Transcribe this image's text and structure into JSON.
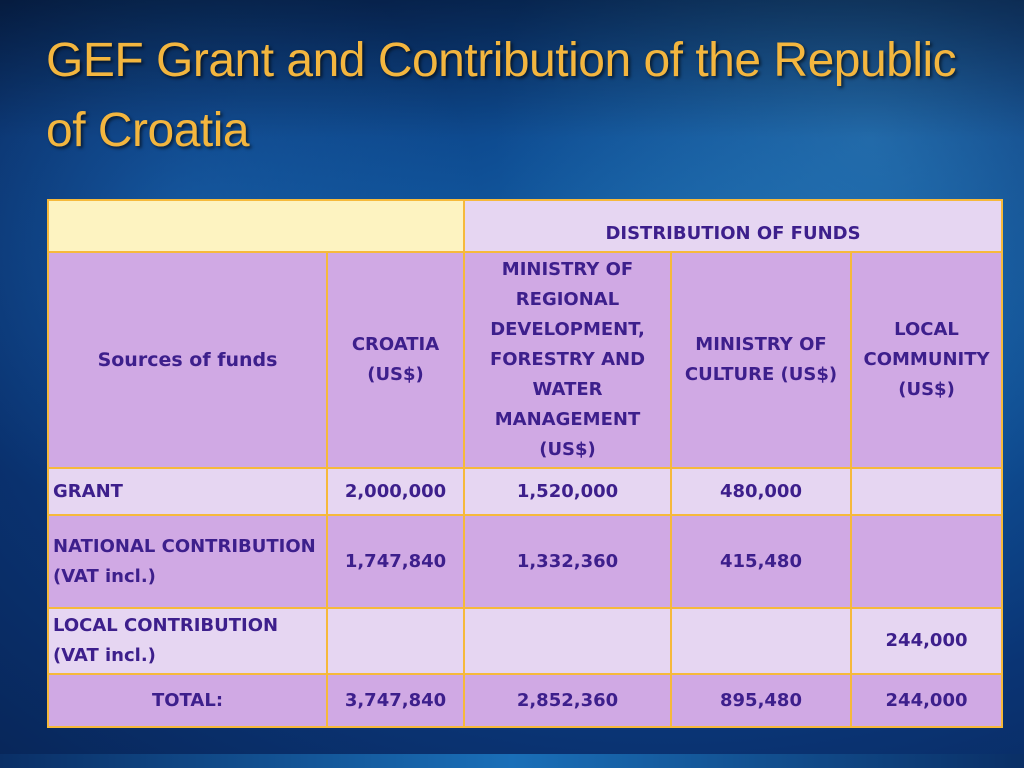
{
  "title": "GEF Grant and Contribution of the Republic of Croatia",
  "table": {
    "distribution_header": "DISTRIBUTION OF FUNDS",
    "columns": {
      "sources": "Sources of funds",
      "croatia": "CROATIA (US$)",
      "ministry_regional": "MINISTRY OF REGIONAL DEVELOPMENT, FORESTRY AND WATER MANAGEMENT (US$)",
      "ministry_culture": "MINISTRY OF CULTURE (US$)",
      "local_community": "LOCAL COMMUNITY (US$)"
    },
    "rows": [
      {
        "label": "GRANT",
        "croatia": "2,000,000",
        "ministry_regional": "1,520,000",
        "ministry_culture": "480,000",
        "local_community": ""
      },
      {
        "label": "NATIONAL CONTRIBUTION (VAT incl.)",
        "croatia": "1,747,840",
        "ministry_regional": "1,332,360",
        "ministry_culture": "415,480",
        "local_community": ""
      },
      {
        "label": "LOCAL CONTRIBUTION (VAT incl.)",
        "croatia": "",
        "ministry_regional": "",
        "ministry_culture": "",
        "local_community": "244,000"
      },
      {
        "label": "TOTAL:",
        "croatia": "3,747,840",
        "ministry_regional": "2,852,360",
        "ministry_culture": "895,480",
        "local_community": "244,000"
      }
    ]
  },
  "colors": {
    "title": "#f3b63f",
    "text": "#3d1f8c",
    "border": "#f6b93b",
    "cell_yellow": "#fdf3c1",
    "cell_light": "#e6d6f2",
    "cell_mid": "#d0a9e4"
  }
}
